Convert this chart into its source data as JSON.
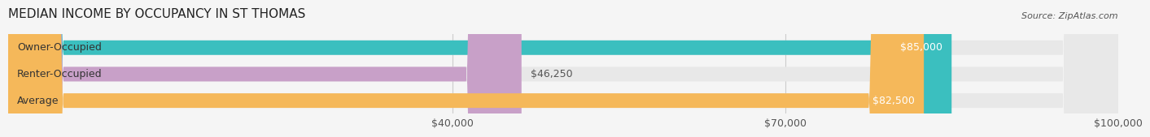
{
  "title": "MEDIAN INCOME BY OCCUPANCY IN ST THOMAS",
  "source": "Source: ZipAtlas.com",
  "categories": [
    "Owner-Occupied",
    "Renter-Occupied",
    "Average"
  ],
  "values": [
    85000,
    46250,
    82500
  ],
  "bar_colors": [
    "#3bbfbf",
    "#c8a0c8",
    "#f5b85a"
  ],
  "bar_labels": [
    "$85,000",
    "$46,250",
    "$82,500"
  ],
  "xlim": [
    0,
    100000
  ],
  "xticks": [
    40000,
    70000,
    100000
  ],
  "xtick_labels": [
    "$40,000",
    "$70,000",
    "$100,000"
  ],
  "background_color": "#f5f5f5",
  "bar_background_color": "#e8e8e8",
  "title_fontsize": 11,
  "label_fontsize": 9,
  "tick_fontsize": 9,
  "source_fontsize": 8,
  "bar_height": 0.55,
  "bar_label_color_inside": "#ffffff",
  "bar_label_color_outside": "#555555",
  "category_label_color": "#333333"
}
